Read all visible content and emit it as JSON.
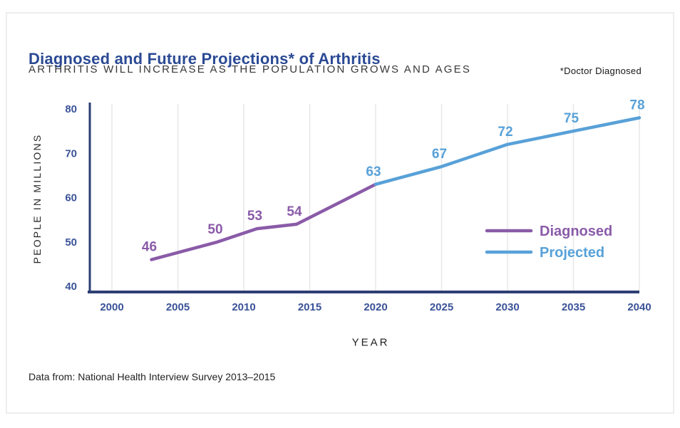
{
  "chart_data": {
    "type": "line",
    "title": "Diagnosed and Future Projections* of Arthritis",
    "subtitle": "ARTHRITIS WILL INCREASE AS THE POPULATION GROWS AND AGES",
    "footnote": "*Doctor Diagnosed",
    "source": "Data from: National Health Interview Survey 2013–2015",
    "xlabel": "YEAR",
    "ylabel": "PEOPLE IN MILLIONS",
    "xlim": [
      2000,
      2040
    ],
    "ylim": [
      40,
      80
    ],
    "x_ticks": [
      "2000",
      "2005",
      "2010",
      "2015",
      "2020",
      "2025",
      "2030",
      "2035",
      "2040"
    ],
    "y_ticks": [
      "40",
      "50",
      "60",
      "70",
      "80"
    ],
    "grid": "vertical-only",
    "legend_position": "inside-right",
    "legend": [
      "Diagnosed",
      "Projected"
    ],
    "series": [
      {
        "name": "Diagnosed",
        "color": "#8a5ba8",
        "points": [
          {
            "x": 2003,
            "y": 46,
            "label": "46"
          },
          {
            "x": 2008,
            "y": 50,
            "label": "50"
          },
          {
            "x": 2011,
            "y": 53,
            "label": "53"
          },
          {
            "x": 2014,
            "y": 54,
            "label": "54"
          },
          {
            "x": 2020,
            "y": 63,
            "label": null
          }
        ]
      },
      {
        "name": "Projected",
        "color": "#58a1d8",
        "points": [
          {
            "x": 2020,
            "y": 63,
            "label": "63"
          },
          {
            "x": 2025,
            "y": 67,
            "label": "67"
          },
          {
            "x": 2030,
            "y": 72,
            "label": "72"
          },
          {
            "x": 2035,
            "y": 75,
            "label": "75"
          },
          {
            "x": 2040,
            "y": 78,
            "label": "78"
          }
        ]
      }
    ],
    "colors": {
      "title": "#2b4a94",
      "axis": "#2d3e73",
      "tick_label": "#3a5398",
      "grid": "#e7e7e7"
    }
  }
}
